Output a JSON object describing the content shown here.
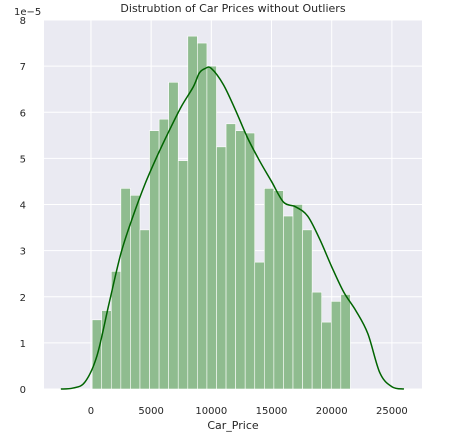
{
  "chart_data": {
    "type": "bar",
    "title": "Distrubtion of Car Prices without Outliers",
    "xlabel": "Car_Price",
    "ylabel": "",
    "y_offset_text": "1e−5",
    "xlim": [
      -3900,
      27500
    ],
    "ylim": [
      0,
      8
    ],
    "x_ticks": [
      0,
      5000,
      10000,
      15000,
      20000,
      25000
    ],
    "x_tick_labels": [
      "0",
      "5000",
      "10000",
      "15000",
      "20000",
      "25000"
    ],
    "y_ticks": [
      0,
      1,
      2,
      3,
      4,
      5,
      6,
      7,
      8
    ],
    "y_tick_labels": [
      "0",
      "1",
      "2",
      "3",
      "4",
      "5",
      "6",
      "7",
      "8"
    ],
    "grid": true,
    "histogram": {
      "bin_start": 100,
      "bin_width": 794.5,
      "values": [
        1.5,
        1.7,
        2.55,
        4.35,
        4.2,
        3.45,
        5.6,
        5.85,
        6.65,
        4.95,
        7.65,
        7.5,
        7.0,
        5.25,
        5.75,
        5.6,
        5.55,
        2.75,
        4.35,
        4.3,
        3.75,
        4.0,
        3.45,
        2.1,
        1.45,
        1.9,
        2.05
      ],
      "color": "#8fbc8f"
    },
    "kde": {
      "x": [
        -2500,
        -1500,
        -500,
        500,
        1500,
        2500,
        3500,
        4500,
        5500,
        6500,
        7500,
        8500,
        9000,
        9500,
        10000,
        11000,
        12000,
        13000,
        14000,
        15000,
        16000,
        17000,
        18000,
        19000,
        20000,
        21000,
        22000,
        23000,
        24000,
        25000,
        26000
      ],
      "y": [
        0.0,
        0.02,
        0.15,
        0.72,
        1.85,
        2.95,
        3.75,
        4.45,
        5.05,
        5.6,
        6.12,
        6.55,
        6.85,
        6.95,
        6.95,
        6.6,
        6.05,
        5.45,
        4.95,
        4.5,
        4.05,
        3.95,
        3.75,
        3.25,
        2.65,
        2.1,
        1.7,
        1.2,
        0.35,
        0.05,
        0.0
      ],
      "color": "#006400"
    }
  }
}
